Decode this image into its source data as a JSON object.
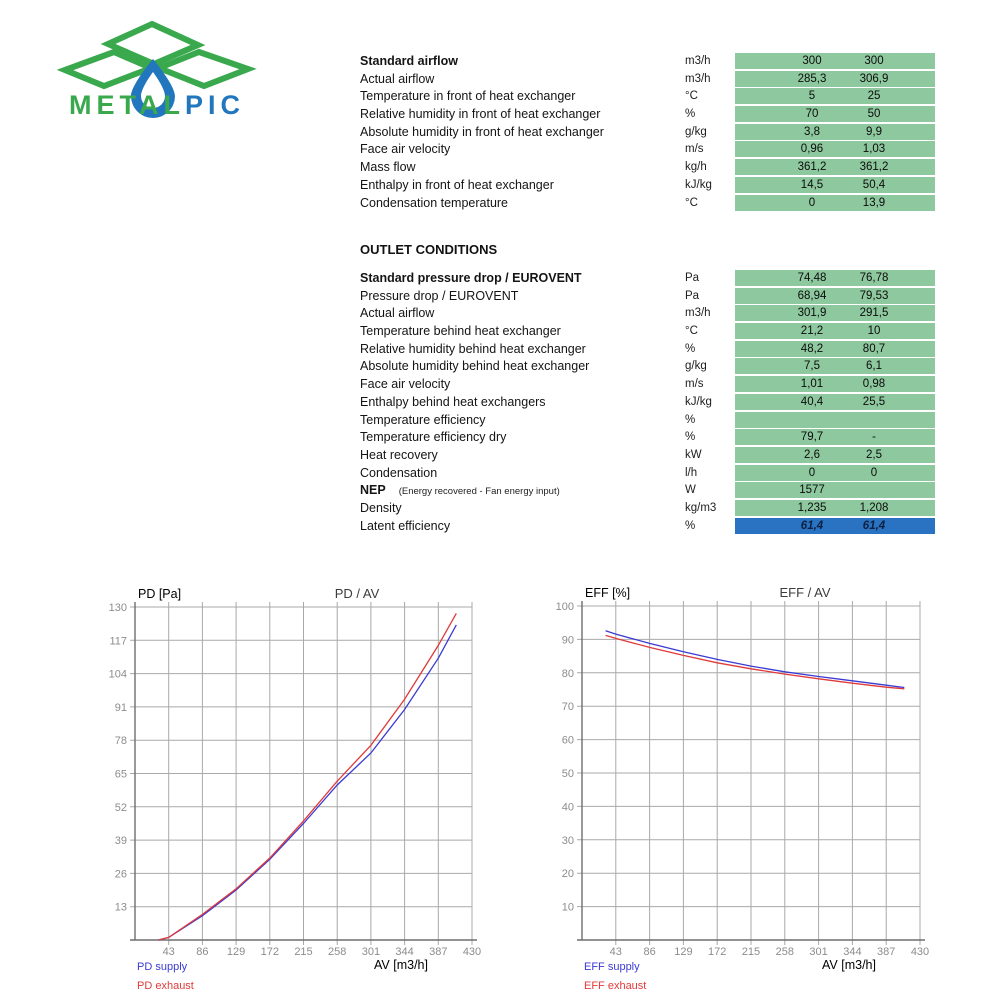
{
  "logo": {
    "metal": "METAL",
    "pic": "PIC",
    "green": "#3aa84d",
    "blue": "#2176bd"
  },
  "colors": {
    "row_green": "#8ec89e",
    "row_blue": "#2a72c2",
    "supply_line": "#3a3ad4",
    "exhaust_line": "#e03a3a"
  },
  "inlet_table": {
    "rows": [
      {
        "label": "Standard airflow",
        "bold": true,
        "unit": "m3/h",
        "v1": "300",
        "v2": "300"
      },
      {
        "label": "Actual airflow",
        "bold": false,
        "unit": "m3/h",
        "v1": "285,3",
        "v2": "306,9"
      },
      {
        "label": "Temperature in front of heat exchanger",
        "bold": false,
        "unit": "°C",
        "v1": "5",
        "v2": "25"
      },
      {
        "label": "Relative humidity in front of heat exchanger",
        "bold": false,
        "unit": "%",
        "v1": "70",
        "v2": "50"
      },
      {
        "label": "Absolute humidity in front of heat exchanger",
        "bold": false,
        "unit": "g/kg",
        "v1": "3,8",
        "v2": "9,9"
      },
      {
        "label": "Face air velocity",
        "bold": false,
        "unit": "m/s",
        "v1": "0,96",
        "v2": "1,03"
      },
      {
        "label": "Mass flow",
        "bold": false,
        "unit": "kg/h",
        "v1": "361,2",
        "v2": "361,2"
      },
      {
        "label": "Enthalpy in front of heat exchanger",
        "bold": false,
        "unit": "kJ/kg",
        "v1": "14,5",
        "v2": "50,4"
      },
      {
        "label": "Condensation temperature",
        "bold": false,
        "unit": "°C",
        "v1": "0",
        "v2": "13,9"
      }
    ]
  },
  "outlet_section": {
    "title": "OUTLET CONDITIONS",
    "rows": [
      {
        "label": "Standard pressure drop / EUROVENT",
        "bold": true,
        "unit": "Pa",
        "v1": "74,48",
        "v2": "76,78"
      },
      {
        "label": "Pressure drop / EUROVENT",
        "bold": false,
        "unit": "Pa",
        "v1": "68,94",
        "v2": "79,53"
      },
      {
        "label": "Actual airflow",
        "bold": false,
        "unit": "m3/h",
        "v1": "301,9",
        "v2": "291,5"
      },
      {
        "label": "Temperature behind heat exchanger",
        "bold": false,
        "unit": "°C",
        "v1": "21,2",
        "v2": "10"
      },
      {
        "label": "Relative humidity behind heat exchanger",
        "bold": false,
        "unit": "%",
        "v1": "48,2",
        "v2": "80,7"
      },
      {
        "label": "Absolute humidity behind heat exchanger",
        "bold": false,
        "unit": "g/kg",
        "v1": "7,5",
        "v2": "6,1"
      },
      {
        "label": "Face air velocity",
        "bold": false,
        "unit": "m/s",
        "v1": "1,01",
        "v2": "0,98"
      },
      {
        "label": "Enthalpy behind heat exchangers",
        "bold": false,
        "unit": "kJ/kg",
        "v1": "40,4",
        "v2": "25,5"
      },
      {
        "label": "Temperature efficiency",
        "bold": false,
        "unit": "%",
        "v1": "",
        "v2": ""
      },
      {
        "label": "Temperature efficiency dry",
        "bold": false,
        "unit": "%",
        "v1": "79,7",
        "v2": "-"
      },
      {
        "label": "Heat recovery",
        "bold": false,
        "unit": "kW",
        "v1": "2,6",
        "v2": "2,5"
      },
      {
        "label": "Condensation",
        "bold": false,
        "unit": "l/h",
        "v1": "0",
        "v2": "0"
      },
      {
        "label": "NEP",
        "note": "(Energy recovered - Fan energy input)",
        "bold": true,
        "unit": "W",
        "v1": "1577",
        "v2": ""
      },
      {
        "label": "Density",
        "bold": false,
        "unit": "kg/m3",
        "v1": "1,235",
        "v2": "1,208"
      },
      {
        "label": "Latent efficiency",
        "bold": false,
        "unit": "%",
        "v1": "61,4",
        "v2": "61,4",
        "highlight": true
      }
    ]
  },
  "chart_data": [
    {
      "name": "pd-av-chart",
      "type": "line",
      "title": "PD / AV",
      "y_axis_label": "PD [Pa]",
      "x_axis_label": "AV [m3/h]",
      "xlim": [
        0,
        430
      ],
      "ylim": [
        0,
        130
      ],
      "xticks": [
        43,
        86,
        129,
        172,
        215,
        258,
        301,
        344,
        387,
        430
      ],
      "yticks": [
        13,
        26,
        39,
        52,
        65,
        78,
        91,
        104,
        117,
        130
      ],
      "grid": true,
      "legend_position": "bottom-left",
      "x": [
        30,
        43,
        86,
        129,
        172,
        215,
        258,
        301,
        344,
        387,
        410
      ],
      "series": [
        {
          "name": "PD supply",
          "color": "#3a3ad4",
          "values": [
            0,
            1,
            9.5,
            19.5,
            31.5,
            45.5,
            60.5,
            73,
            90,
            110,
            123
          ]
        },
        {
          "name": "PD exhaust",
          "color": "#e03a3a",
          "values": [
            0,
            1,
            10,
            20,
            32,
            46.5,
            62,
            76,
            94,
            115,
            127.5
          ]
        }
      ]
    },
    {
      "name": "eff-av-chart",
      "type": "line",
      "title": "EFF / AV",
      "y_axis_label": "EFF [%]",
      "x_axis_label": "AV [m3/h]",
      "xlim": [
        0,
        430
      ],
      "ylim": [
        0,
        100
      ],
      "xticks": [
        43,
        86,
        129,
        172,
        215,
        258,
        301,
        344,
        387,
        430
      ],
      "yticks": [
        10,
        20,
        30,
        40,
        50,
        60,
        70,
        80,
        90,
        100
      ],
      "grid": true,
      "legend_position": "bottom-left",
      "x": [
        30,
        43,
        86,
        129,
        172,
        215,
        258,
        301,
        344,
        387,
        410
      ],
      "series": [
        {
          "name": "EFF supply",
          "color": "#3a3ad4",
          "values": [
            92.6,
            91.6,
            88.8,
            86.3,
            84.0,
            82.0,
            80.3,
            78.9,
            77.6,
            76.3,
            75.6
          ]
        },
        {
          "name": "EFF exhaust",
          "color": "#e03a3a",
          "values": [
            91.2,
            90.3,
            87.6,
            85.2,
            83.0,
            81.2,
            79.6,
            78.2,
            76.9,
            75.7,
            75.2
          ]
        }
      ]
    }
  ]
}
